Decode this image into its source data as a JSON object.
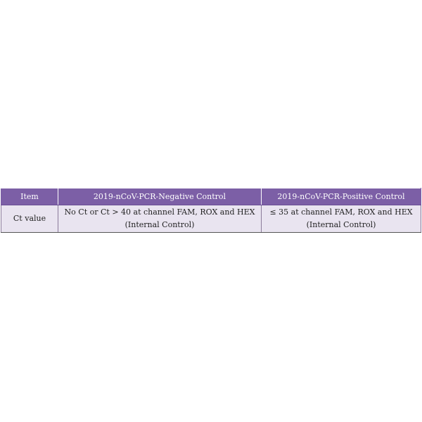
{
  "table": {
    "headers": [
      "Item",
      "2019-nCoV-PCR-Negative Control",
      "2019-nCoV-PCR-Positive Control"
    ],
    "rows": [
      {
        "item": "Ct value",
        "negative_line1": "No Ct or Ct > 40 at channel FAM, ROX and HEX",
        "negative_line2": "(Internal Control)",
        "positive_line1": "≤ 35 at channel FAM, ROX and HEX",
        "positive_line2": "(Internal Control)"
      }
    ]
  },
  "colors": {
    "header_bg": "#7c5fa6",
    "body_bg": "#e9e4f0"
  }
}
